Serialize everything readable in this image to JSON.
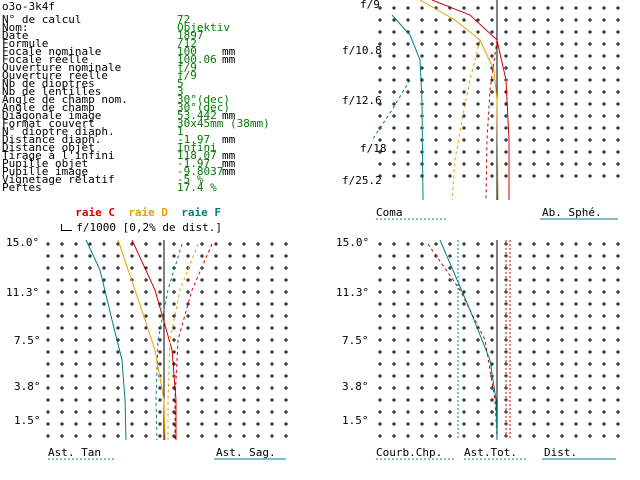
{
  "window": {
    "title": "o3o-3k4f"
  },
  "params": [
    {
      "label": "N° de calcul",
      "value": "72",
      "unit": ""
    },
    {
      "label": "Nom:",
      "value": "Objektiv",
      "unit": ""
    },
    {
      "label": "Date",
      "value": "1897",
      "unit": ""
    },
    {
      "label": "Formule",
      "value": "/12",
      "unit": ""
    },
    {
      "label": "Focale nominale",
      "value": "100",
      "unit": "mm"
    },
    {
      "label": "Focale réelle",
      "value": "100.06",
      "unit": "mm"
    },
    {
      "label": "Ouverture nominale",
      "value": "f/9",
      "unit": ""
    },
    {
      "label": "Ouverture réelle",
      "value": "f/9",
      "unit": ""
    },
    {
      "label": "Nb de dioptres",
      "value": "5",
      "unit": ""
    },
    {
      "label": "Nb de lentilles",
      "value": "3",
      "unit": ""
    },
    {
      "label": "Angle de champ nom.",
      "value": "30°(dec)",
      "unit": ""
    },
    {
      "label": "Angle de champ",
      "value": "30°(dec)",
      "unit": ""
    },
    {
      "label": "Diagonale image",
      "value": "53.442",
      "unit": "mm"
    },
    {
      "label": "Format couvert",
      "value": "30x45mm (38mm)",
      "unit": ""
    },
    {
      "label": "N° dioptre diaph.",
      "value": "1",
      "unit": ""
    },
    {
      "label": "Distance diaph.",
      "value": "-1.97",
      "unit": "mm"
    },
    {
      "label": "Distance objet",
      "value": "Infini",
      "unit": ""
    },
    {
      "label": "Tirage à l'infini",
      "value": "118.07",
      "unit": "mm"
    },
    {
      "label": "Pupille objet",
      "value": "-1.97",
      "unit": "mm"
    },
    {
      "label": "Pupille image",
      "value": "-9.8037",
      "unit": "mm"
    },
    {
      "label": "Vignetage relatif",
      "value": "-5 %",
      "unit": ""
    },
    {
      "label": "Pertes",
      "value": "17.4 %",
      "unit": ""
    }
  ],
  "scale_note": "f/1000 [0,2% de dist.]",
  "legend": {
    "c": "raie C",
    "d": "raie D",
    "f": "raie F"
  },
  "colors": {
    "c": "#d40000",
    "d": "#e8a000",
    "f": "#008080",
    "green": "#007a00",
    "blue": "#1f5fbf"
  },
  "top_right": {
    "y_ticks": [
      "f/9",
      "f/10.8",
      "f/12.6",
      "f/18",
      "f/25.2"
    ],
    "bottom_left": "Coma",
    "bottom_right": "Ab. Sphé."
  },
  "bottom_left": {
    "y_ticks": [
      "15.0°",
      "11.3°",
      "7.5°",
      "3.8°",
      "1.5°"
    ],
    "bottom_left": "Ast. Tan",
    "bottom_right": "Ast. Sag."
  },
  "bottom_right": {
    "y_ticks": [
      "15.0°",
      "11.3°",
      "7.5°",
      "3.8°",
      "1.5°"
    ],
    "label_1": "Courb.Chp.",
    "label_2": "Ast.Tot.",
    "label_3": "Dist."
  }
}
